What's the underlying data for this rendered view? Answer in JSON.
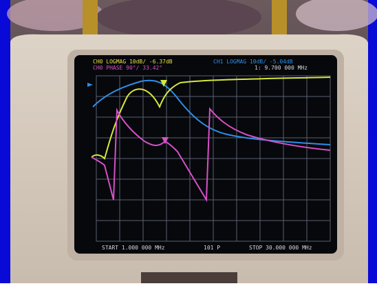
{
  "screen": {
    "header": {
      "trace0": "CH0 LOGMAG 10dB/ -6.37dB",
      "trace1": "CH0 PHASE 90°/ 33.42°",
      "trace2": "CH1 LOGMAG 10dB/ -5.04dB",
      "marker": "1: 9.700 000 MHz"
    },
    "footer": {
      "start": "START 1.000 000 MHz",
      "points": "101 P",
      "stop": "STOP 30.000 000 MHz"
    }
  }
}
